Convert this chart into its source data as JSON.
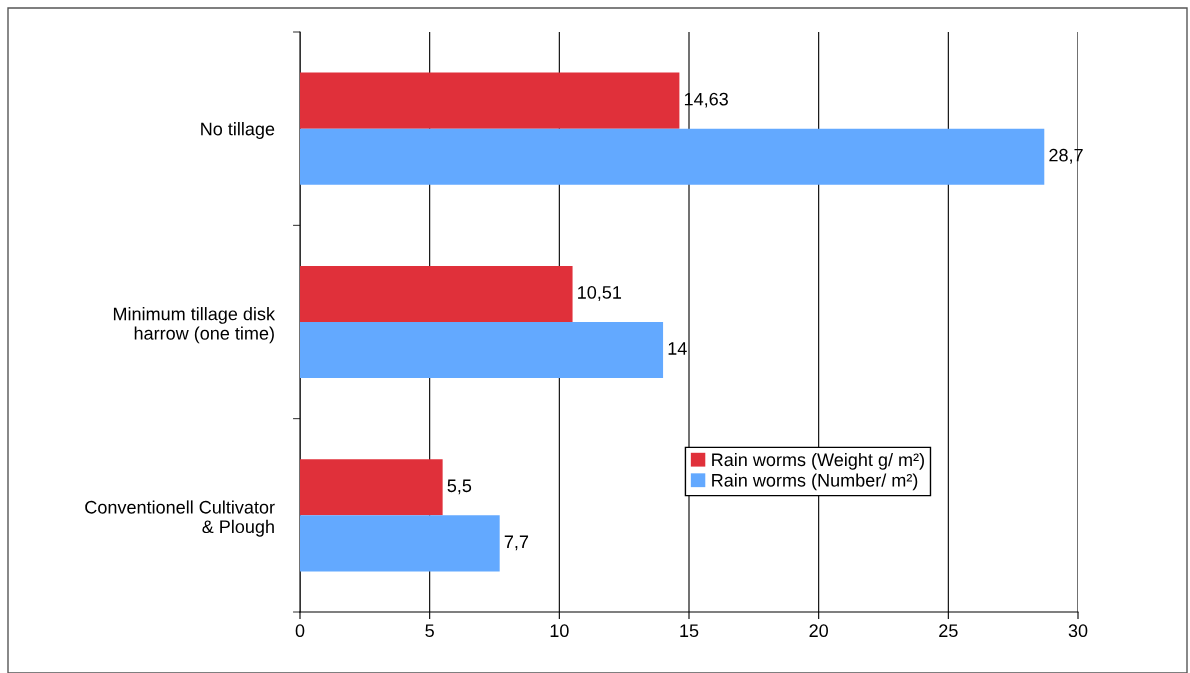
{
  "chart_data": {
    "type": "bar",
    "orientation": "horizontal",
    "categories": [
      "No tillage",
      "Minimum tillage disk\nharrow (one time)",
      "Conventionell Cultivator\n& Plough"
    ],
    "series": [
      {
        "name": "Rain worms (Weight g/ m²)",
        "color": "#e0303a",
        "values": [
          14.63,
          10.51,
          5.5
        ],
        "value_labels": [
          "14,63",
          "10,51",
          "5,5"
        ]
      },
      {
        "name": "Rain worms (Number/ m²)",
        "color": "#63a9ff",
        "values": [
          28.7,
          14,
          7.7
        ],
        "value_labels": [
          "28,7",
          "14",
          "7,7"
        ]
      }
    ],
    "xlim": [
      0,
      30
    ],
    "xticks": [
      0,
      5,
      10,
      15,
      20,
      25,
      30
    ],
    "grid": "x",
    "legend": "bottom right"
  }
}
